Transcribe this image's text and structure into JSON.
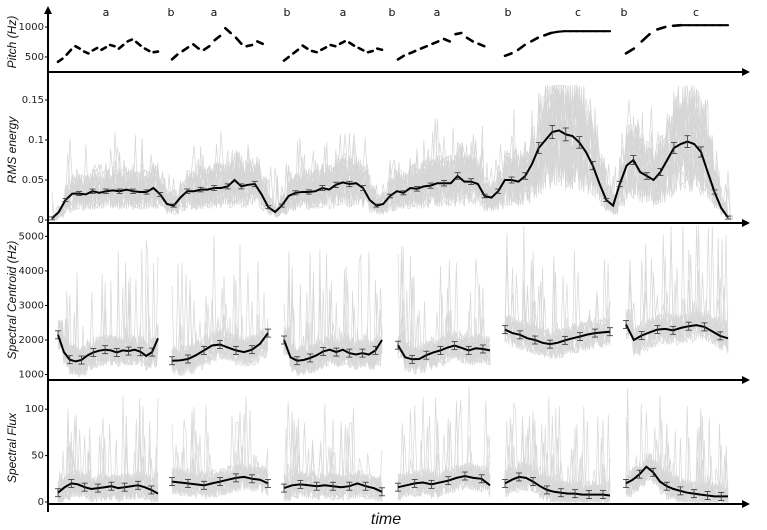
{
  "figure": {
    "x_label": "time",
    "segment_labels": [
      "a",
      "b",
      "a",
      "b",
      "a",
      "b",
      "a",
      "b",
      "c",
      "b",
      "c"
    ]
  },
  "chart_data": [
    {
      "type": "line",
      "ylabel": "Pitch (Hz)",
      "ylim": [
        350,
        1150
      ],
      "ticks": [
        500,
        1000
      ],
      "tick_labels": [
        "500",
        "1000"
      ],
      "segments": [
        {
          "label": "a",
          "points": [
            [
              0,
              420
            ],
            [
              1,
              470
            ],
            [
              2,
              540
            ],
            [
              3,
              620
            ],
            [
              4,
              680
            ],
            [
              5,
              640
            ],
            [
              6,
              590
            ],
            [
              7,
              560
            ],
            [
              8,
              610
            ],
            [
              9,
              650
            ],
            [
              10,
              620
            ],
            [
              11,
              660
            ],
            [
              12,
              700
            ],
            [
              13,
              680
            ],
            [
              14,
              640
            ],
            [
              15,
              700
            ],
            [
              16,
              760
            ],
            [
              17,
              790
            ],
            [
              18,
              750
            ],
            [
              19,
              690
            ],
            [
              20,
              640
            ],
            [
              21,
              600
            ],
            [
              22,
              580
            ],
            [
              23,
              590
            ]
          ]
        },
        {
          "label": "a",
          "points": [
            [
              0,
              460
            ],
            [
              1,
              540
            ],
            [
              2,
              600
            ],
            [
              3,
              660
            ],
            [
              4,
              710
            ],
            [
              5,
              640
            ],
            [
              6,
              620
            ],
            [
              7,
              680
            ],
            [
              8,
              780
            ],
            [
              9,
              850
            ],
            [
              10,
              980
            ],
            [
              11,
              900
            ],
            [
              12,
              820
            ],
            [
              13,
              720
            ],
            [
              14,
              680
            ],
            [
              15,
              700
            ],
            [
              16,
              760
            ],
            [
              17,
              720
            ],
            [
              18,
              680
            ]
          ]
        },
        {
          "label": "a",
          "points": [
            [
              0,
              440
            ],
            [
              1,
              500
            ],
            [
              2,
              560
            ],
            [
              3,
              620
            ],
            [
              4,
              690
            ],
            [
              5,
              640
            ],
            [
              6,
              600
            ],
            [
              7,
              580
            ],
            [
              8,
              620
            ],
            [
              9,
              660
            ],
            [
              10,
              700
            ],
            [
              11,
              680
            ],
            [
              12,
              720
            ],
            [
              13,
              760
            ],
            [
              14,
              740
            ],
            [
              15,
              690
            ],
            [
              16,
              650
            ],
            [
              17,
              610
            ],
            [
              18,
              580
            ],
            [
              19,
              600
            ],
            [
              20,
              640
            ],
            [
              21,
              620
            ]
          ]
        },
        {
          "label": "a",
          "points": [
            [
              0,
              460
            ],
            [
              1,
              520
            ],
            [
              2,
              560
            ],
            [
              3,
              600
            ],
            [
              4,
              640
            ],
            [
              5,
              680
            ],
            [
              6,
              720
            ],
            [
              7,
              760
            ],
            [
              8,
              800
            ],
            [
              9,
              760
            ],
            [
              10,
              880
            ],
            [
              11,
              900
            ],
            [
              12,
              820
            ],
            [
              13,
              760
            ],
            [
              14,
              720
            ],
            [
              15,
              680
            ],
            [
              16,
              660
            ]
          ]
        },
        {
          "label": "c",
          "points": [
            [
              0,
              520
            ],
            [
              1,
              560
            ],
            [
              2,
              620
            ],
            [
              3,
              700
            ],
            [
              4,
              760
            ],
            [
              5,
              820
            ],
            [
              6,
              860
            ],
            [
              7,
              900
            ],
            [
              8,
              920
            ],
            [
              9,
              930
            ],
            [
              10,
              930
            ],
            [
              11,
              930
            ],
            [
              12,
              930
            ],
            [
              13,
              930
            ],
            [
              14,
              930
            ],
            [
              15,
              930
            ],
            [
              16,
              930
            ]
          ]
        },
        {
          "label": "c",
          "points": [
            [
              0,
              560
            ],
            [
              1,
              640
            ],
            [
              2,
              760
            ],
            [
              3,
              880
            ],
            [
              4,
              960
            ],
            [
              5,
              1000
            ],
            [
              6,
              1020
            ],
            [
              7,
              1030
            ],
            [
              8,
              1030
            ],
            [
              9,
              1030
            ],
            [
              10,
              1030
            ],
            [
              11,
              1030
            ],
            [
              12,
              1030
            ],
            [
              13,
              1030
            ]
          ]
        }
      ]
    },
    {
      "type": "line",
      "ylabel": "RMS energy",
      "ylim": [
        0,
        0.17
      ],
      "ticks": [
        0,
        0.05,
        0.1,
        0.15
      ],
      "tick_labels": [
        "0",
        "0.05",
        "0.1",
        "0.15"
      ],
      "mean": [
        0.002,
        0.01,
        0.025,
        0.033,
        0.033,
        0.032,
        0.036,
        0.034,
        0.036,
        0.037,
        0.036,
        0.038,
        0.036,
        0.035,
        0.035,
        0.04,
        0.032,
        0.02,
        0.018,
        0.028,
        0.036,
        0.036,
        0.038,
        0.038,
        0.04,
        0.04,
        0.042,
        0.05,
        0.042,
        0.044,
        0.045,
        0.032,
        0.016,
        0.01,
        0.018,
        0.03,
        0.034,
        0.035,
        0.035,
        0.036,
        0.04,
        0.038,
        0.044,
        0.047,
        0.045,
        0.046,
        0.04,
        0.025,
        0.018,
        0.02,
        0.03,
        0.036,
        0.034,
        0.04,
        0.039,
        0.042,
        0.043,
        0.046,
        0.046,
        0.046,
        0.055,
        0.048,
        0.048,
        0.045,
        0.03,
        0.028,
        0.036,
        0.05,
        0.05,
        0.048,
        0.055,
        0.07,
        0.09,
        0.1,
        0.11,
        0.112,
        0.107,
        0.105,
        0.097,
        0.085,
        0.068,
        0.045,
        0.025,
        0.018,
        0.045,
        0.068,
        0.075,
        0.06,
        0.055,
        0.05,
        0.06,
        0.075,
        0.09,
        0.095,
        0.098,
        0.095,
        0.085,
        0.06,
        0.035,
        0.015,
        0.003
      ]
    },
    {
      "type": "line",
      "ylabel": "Spectral Centroid (Hz)",
      "ylim": [
        900,
        5300
      ],
      "ticks": [
        1000,
        2000,
        3000,
        4000,
        5000
      ],
      "tick_labels": [
        "1000",
        "2000",
        "3000",
        "4000",
        "5000"
      ],
      "segments": [
        {
          "mean": [
            2150,
            1650,
            1430,
            1380,
            1420,
            1550,
            1640,
            1690,
            1720,
            1700,
            1640,
            1700,
            1680,
            1720,
            1660,
            1540,
            1650,
            2050
          ]
        },
        {
          "mean": [
            1400,
            1410,
            1450,
            1560,
            1700,
            1840,
            1870,
            1780,
            1700,
            1650,
            1720,
            1890,
            2200
          ]
        },
        {
          "mean": [
            2000,
            1500,
            1400,
            1420,
            1480,
            1560,
            1670,
            1720,
            1650,
            1720,
            1620,
            1580,
            1620,
            1580,
            1700,
            2000
          ]
        },
        {
          "mean": [
            1850,
            1500,
            1440,
            1450,
            1560,
            1640,
            1700,
            1780,
            1840,
            1770,
            1700,
            1760,
            1740,
            1700
          ]
        },
        {
          "mean": [
            2300,
            2200,
            2150,
            2050,
            2000,
            1920,
            1880,
            1920,
            1990,
            2050,
            2100,
            2160,
            2200,
            2220,
            2240
          ]
        },
        {
          "mean": [
            2450,
            2000,
            2130,
            2220,
            2300,
            2320,
            2280,
            2350,
            2400,
            2430,
            2380,
            2250,
            2120,
            2050
          ]
        }
      ]
    },
    {
      "type": "line",
      "ylabel": "Spectral Flux",
      "ylim": [
        0,
        125
      ],
      "ticks": [
        0,
        50,
        100
      ],
      "tick_labels": [
        "0",
        "50",
        "100"
      ],
      "segments": [
        {
          "mean": [
            10,
            16,
            20,
            19,
            16,
            14,
            15,
            16,
            17,
            15,
            16,
            17,
            18,
            16,
            13,
            9
          ]
        },
        {
          "mean": [
            22,
            21,
            20,
            19,
            18,
            20,
            22,
            24,
            26,
            27,
            25,
            24,
            20
          ]
        },
        {
          "mean": [
            15,
            18,
            19,
            18,
            17,
            18,
            17,
            16,
            17,
            20,
            17,
            15,
            11
          ]
        },
        {
          "mean": [
            16,
            18,
            20,
            21,
            19,
            21,
            23,
            26,
            28,
            26,
            25,
            18
          ]
        },
        {
          "mean": [
            20,
            24,
            27,
            26,
            22,
            17,
            13,
            11,
            10,
            9,
            9,
            8,
            8,
            8,
            8,
            7
          ]
        },
        {
          "mean": [
            20,
            24,
            30,
            38,
            32,
            22,
            17,
            14,
            12,
            10,
            9,
            8,
            7,
            6,
            6,
            6
          ]
        }
      ]
    }
  ]
}
